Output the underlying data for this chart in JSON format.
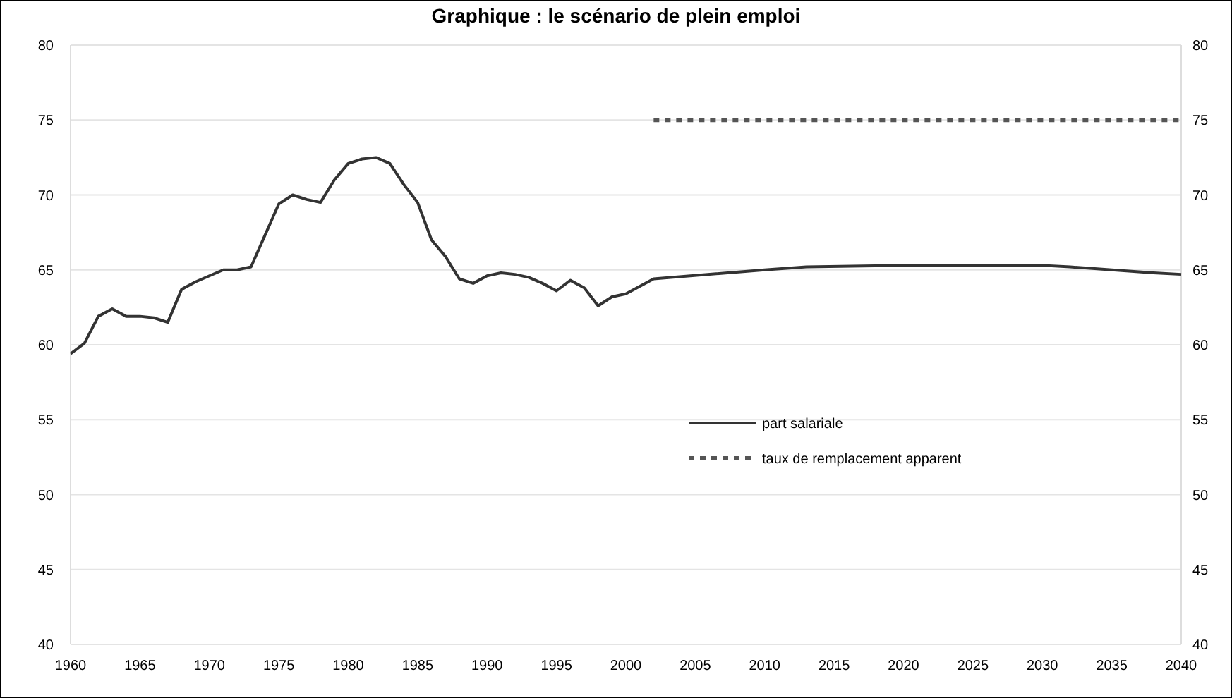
{
  "chart_data": {
    "type": "line",
    "title": "Graphique : le scénario de plein emploi",
    "xlim": [
      1960,
      2040
    ],
    "xticks": [
      1960,
      1965,
      1970,
      1975,
      1980,
      1985,
      1990,
      1995,
      2000,
      2005,
      2010,
      2015,
      2020,
      2025,
      2030,
      2035,
      2040
    ],
    "ylim": [
      40,
      80
    ],
    "yticks": [
      40,
      45,
      50,
      55,
      60,
      65,
      70,
      75,
      80
    ],
    "y2lim": [
      40,
      80
    ],
    "y2ticks": [
      40,
      45,
      50,
      55,
      60,
      65,
      70,
      75,
      80
    ],
    "grid": "y",
    "legend": "right",
    "marker": "none",
    "series": [
      {
        "name": "part salariale",
        "color": "#333333",
        "line_style": "solid",
        "x": [
          1960,
          1961,
          1962,
          1963,
          1964,
          1965,
          1966,
          1967,
          1968,
          1969,
          1970,
          1971,
          1972,
          1973,
          1974,
          1975,
          1976,
          1977,
          1978,
          1979,
          1980,
          1981,
          1982,
          1983,
          1984,
          1985,
          1986,
          1987,
          1988,
          1989,
          1990,
          1991,
          1992,
          1993,
          1994,
          1995,
          1996,
          1997,
          1998,
          1999,
          2000,
          2002,
          2010,
          2013,
          2020,
          2030,
          2032,
          2035,
          2038,
          2040
        ],
        "values": [
          59.4,
          60.1,
          61.9,
          62.4,
          61.9,
          61.9,
          61.8,
          61.5,
          63.7,
          64.2,
          64.6,
          65.0,
          65.0,
          65.2,
          67.3,
          69.4,
          70.0,
          69.7,
          69.5,
          71.0,
          72.1,
          72.4,
          72.5,
          72.1,
          70.7,
          69.5,
          67.0,
          65.9,
          64.4,
          64.1,
          64.6,
          64.8,
          64.7,
          64.5,
          64.1,
          63.6,
          64.3,
          63.8,
          62.6,
          63.2,
          63.4,
          64.4,
          65.0,
          65.2,
          65.3,
          65.3,
          65.2,
          65.0,
          64.8,
          64.7
        ]
      },
      {
        "name": "taux de remplacement apparent",
        "color": "#555555",
        "line_style": "dotted",
        "x": [
          2002,
          2040
        ],
        "values": [
          75,
          75
        ]
      }
    ]
  }
}
